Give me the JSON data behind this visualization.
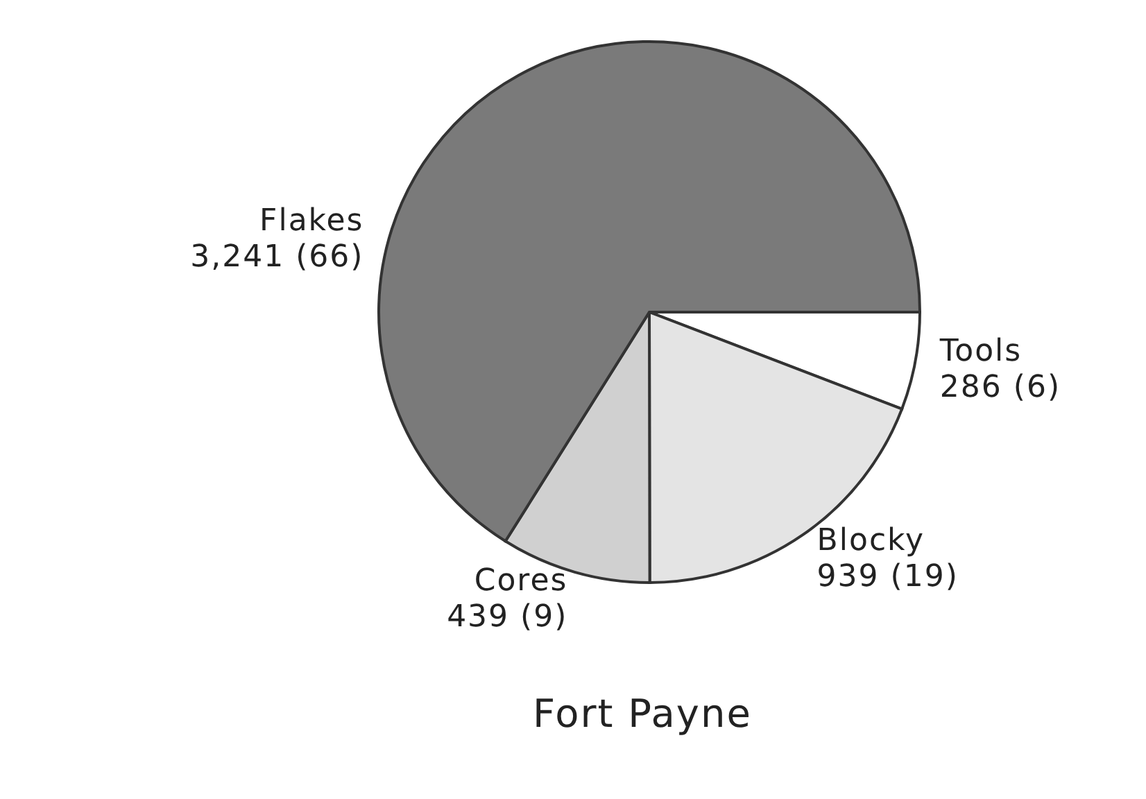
{
  "chart_data": {
    "type": "pie",
    "title": "Fort Payne",
    "categories": [
      "Tools",
      "Blocky",
      "Cores",
      "Flakes"
    ],
    "values": [
      286,
      939,
      439,
      3241
    ],
    "value_labels": [
      "286 (6)",
      "939 (19)",
      "439 (9)",
      "3,241 (66)"
    ],
    "colors": [
      "#ffffff",
      "#e4e4e4",
      "#d0d0d0",
      "#7a7a7a"
    ]
  }
}
